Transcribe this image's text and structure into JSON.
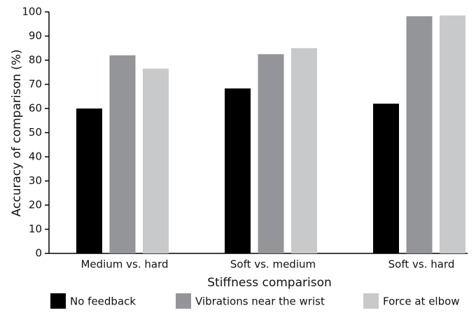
{
  "chart_data": {
    "type": "bar",
    "x_label": "Stiffness comparison",
    "y_label": "Accuracy of comparison (%)",
    "categories": [
      "Medium vs. hard",
      "Soft vs. medium",
      "Soft vs. hard"
    ],
    "series": [
      {
        "name": "No feedback",
        "color": "#000000",
        "values": [
          60,
          68.3,
          62
        ]
      },
      {
        "name": "Vibrations near the wrist",
        "color": "#939598",
        "values": [
          82,
          82.5,
          98.2
        ]
      },
      {
        "name": "Force at elbow",
        "color": "#c8c9cb",
        "values": [
          76.5,
          85,
          98.5
        ]
      }
    ],
    "ylim": [
      0,
      100
    ],
    "yticks": [
      0,
      10,
      20,
      30,
      40,
      50,
      60,
      70,
      80,
      90,
      100
    ],
    "legend": "bottom"
  }
}
